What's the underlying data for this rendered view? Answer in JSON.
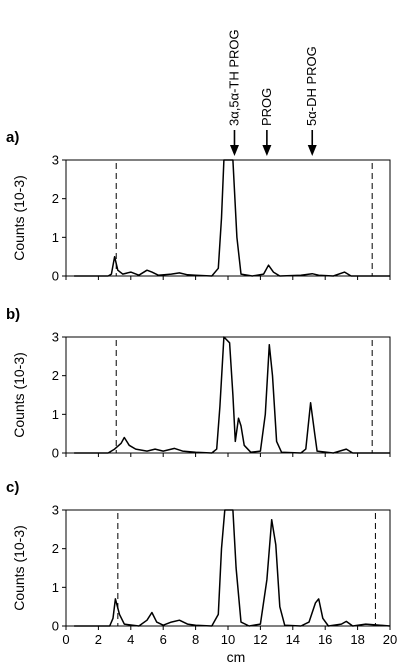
{
  "chart_data": {
    "type": "line",
    "xlabel": "cm",
    "ylabel": "Counts (10-3)",
    "xlim": [
      0,
      20
    ],
    "ylim": [
      0,
      3
    ],
    "x_ticks": [
      "0",
      "2",
      "4",
      "6",
      "8",
      "10",
      "12",
      "14",
      "16",
      "18",
      "20"
    ],
    "y_ticks": [
      "0",
      "1",
      "2",
      "3"
    ],
    "markers": [
      {
        "label": "3α,5α-TH PROG",
        "x": 10.4
      },
      {
        "label": "PROG",
        "x": 12.4
      },
      {
        "label": "5α-DH PROG",
        "x": 15.2
      }
    ],
    "panels": [
      {
        "label": "a)",
        "dashed_lines": [
          3.1,
          18.9
        ],
        "points": [
          [
            0.5,
            0
          ],
          [
            2.6,
            0
          ],
          [
            2.8,
            0.05
          ],
          [
            3.0,
            0.5
          ],
          [
            3.2,
            0.15
          ],
          [
            3.5,
            0.05
          ],
          [
            4.0,
            0.1
          ],
          [
            4.5,
            0.02
          ],
          [
            5.0,
            0.15
          ],
          [
            5.3,
            0.1
          ],
          [
            5.7,
            0.02
          ],
          [
            6.5,
            0.05
          ],
          [
            7.0,
            0.08
          ],
          [
            7.5,
            0.03
          ],
          [
            8.0,
            0.02
          ],
          [
            9.0,
            0
          ],
          [
            9.4,
            0.2
          ],
          [
            9.6,
            1.5
          ],
          [
            9.75,
            3.0
          ],
          [
            10.3,
            3.0
          ],
          [
            10.55,
            1.0
          ],
          [
            10.8,
            0.05
          ],
          [
            11.5,
            0
          ],
          [
            12.2,
            0.05
          ],
          [
            12.5,
            0.28
          ],
          [
            12.8,
            0.1
          ],
          [
            13.2,
            0
          ],
          [
            14.5,
            0.02
          ],
          [
            15.2,
            0.06
          ],
          [
            15.6,
            0.02
          ],
          [
            16.5,
            0
          ],
          [
            17.2,
            0.1
          ],
          [
            17.6,
            0
          ],
          [
            18.5,
            0
          ],
          [
            20,
            0
          ]
        ]
      },
      {
        "label": "b)",
        "dashed_lines": [
          3.1,
          18.9
        ],
        "points": [
          [
            0.5,
            0
          ],
          [
            2.6,
            0
          ],
          [
            3.0,
            0.1
          ],
          [
            3.4,
            0.25
          ],
          [
            3.6,
            0.4
          ],
          [
            3.9,
            0.2
          ],
          [
            4.3,
            0.1
          ],
          [
            5.0,
            0.05
          ],
          [
            5.5,
            0.1
          ],
          [
            6.0,
            0.05
          ],
          [
            6.7,
            0.12
          ],
          [
            7.2,
            0.05
          ],
          [
            8.0,
            0.02
          ],
          [
            9.0,
            0
          ],
          [
            9.3,
            0.1
          ],
          [
            9.5,
            1.2
          ],
          [
            9.75,
            3.0
          ],
          [
            10.1,
            2.85
          ],
          [
            10.3,
            1.5
          ],
          [
            10.45,
            0.3
          ],
          [
            10.65,
            0.9
          ],
          [
            10.8,
            0.7
          ],
          [
            11.0,
            0.2
          ],
          [
            11.4,
            0.02
          ],
          [
            12.0,
            0.05
          ],
          [
            12.3,
            1.0
          ],
          [
            12.55,
            2.8
          ],
          [
            12.75,
            2.0
          ],
          [
            13.0,
            0.3
          ],
          [
            13.3,
            0.02
          ],
          [
            14.5,
            0
          ],
          [
            14.8,
            0.1
          ],
          [
            15.1,
            1.3
          ],
          [
            15.35,
            0.5
          ],
          [
            15.5,
            0.05
          ],
          [
            16.5,
            0
          ],
          [
            17.3,
            0.1
          ],
          [
            17.7,
            0
          ],
          [
            18.5,
            0
          ],
          [
            20,
            0
          ]
        ]
      },
      {
        "label": "c)",
        "dashed_lines": [
          3.2,
          19.1
        ],
        "points": [
          [
            0.5,
            0
          ],
          [
            2.7,
            0
          ],
          [
            2.9,
            0.2
          ],
          [
            3.05,
            0.7
          ],
          [
            3.3,
            0.3
          ],
          [
            3.6,
            0.05
          ],
          [
            4.5,
            0
          ],
          [
            5.0,
            0.15
          ],
          [
            5.3,
            0.35
          ],
          [
            5.6,
            0.1
          ],
          [
            6.0,
            0.02
          ],
          [
            6.5,
            0.1
          ],
          [
            7.0,
            0.15
          ],
          [
            7.5,
            0.05
          ],
          [
            8.0,
            0.02
          ],
          [
            9.0,
            0
          ],
          [
            9.4,
            0.3
          ],
          [
            9.6,
            2.0
          ],
          [
            9.8,
            3.0
          ],
          [
            10.3,
            3.0
          ],
          [
            10.5,
            1.5
          ],
          [
            10.8,
            0.1
          ],
          [
            11.3,
            0
          ],
          [
            12.0,
            0.05
          ],
          [
            12.4,
            1.2
          ],
          [
            12.7,
            2.75
          ],
          [
            12.95,
            2.1
          ],
          [
            13.2,
            0.5
          ],
          [
            13.5,
            0.02
          ],
          [
            14.5,
            0
          ],
          [
            15.0,
            0.1
          ],
          [
            15.4,
            0.6
          ],
          [
            15.6,
            0.7
          ],
          [
            15.85,
            0.2
          ],
          [
            16.2,
            0
          ],
          [
            17.0,
            0.05
          ],
          [
            17.3,
            0.12
          ],
          [
            17.7,
            0
          ],
          [
            18.5,
            0.05
          ],
          [
            20,
            0
          ]
        ]
      }
    ]
  }
}
